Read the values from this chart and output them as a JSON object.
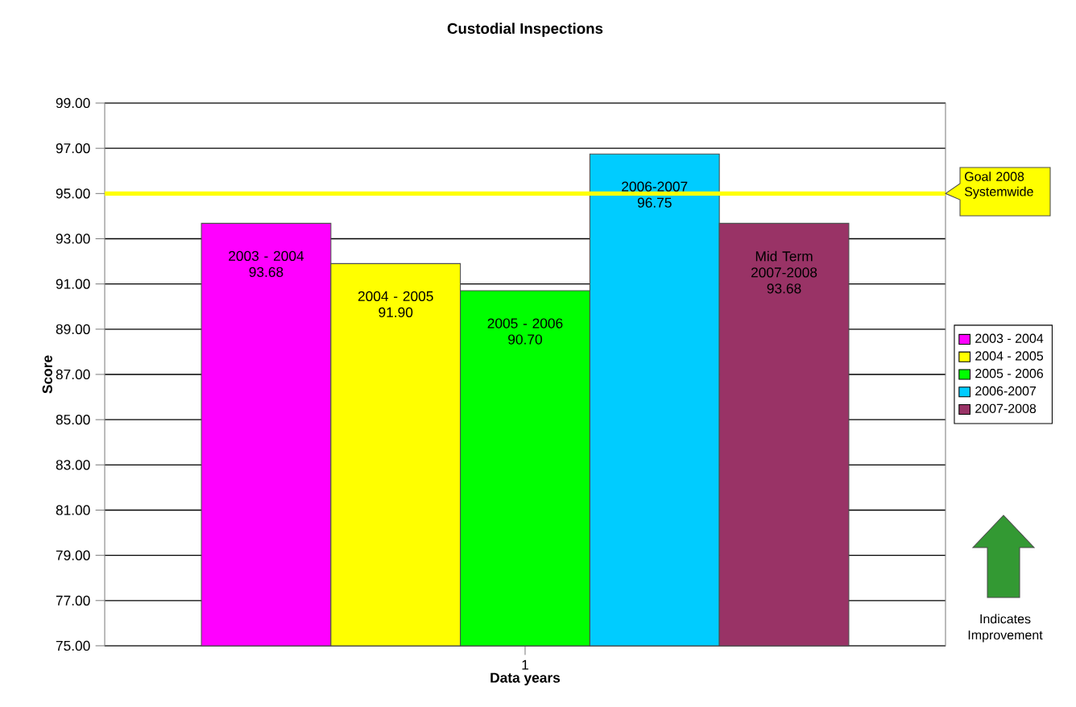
{
  "chart_data": {
    "type": "bar",
    "title": "Custodial Inspections",
    "xlabel": "Data years",
    "ylabel": "Score",
    "categories": [
      "1"
    ],
    "series": [
      {
        "name": "2003 - 2004",
        "color": "#ff00ff",
        "values": [
          93.68
        ],
        "value_labels": [
          "2003 - 2004 93.68"
        ]
      },
      {
        "name": "2004 - 2005",
        "color": "#ffff00",
        "values": [
          91.9
        ],
        "value_labels": [
          "2004 - 2005 91.90"
        ]
      },
      {
        "name": "2005 - 2006",
        "color": "#00ff00",
        "values": [
          90.7
        ],
        "value_labels": [
          "2005 - 2006 90.70"
        ]
      },
      {
        "name": "2006-2007",
        "color": "#00ccff",
        "values": [
          96.75
        ],
        "value_labels": [
          "2006-2007 96.75"
        ]
      },
      {
        "name": "2007-2008",
        "color": "#993366",
        "values": [
          93.68
        ],
        "value_labels": [
          "Mid Term 2007-2008 93.68"
        ]
      }
    ],
    "ylim": [
      75,
      99
    ],
    "yticks": [
      {
        "value": 75,
        "label": "75.00"
      },
      {
        "value": 77,
        "label": "77.00"
      },
      {
        "value": 79,
        "label": "79.00"
      },
      {
        "value": 81,
        "label": "81.00"
      },
      {
        "value": 83,
        "label": "83.00"
      },
      {
        "value": 85,
        "label": "85.00"
      },
      {
        "value": 87,
        "label": "87.00"
      },
      {
        "value": 89,
        "label": "89.00"
      },
      {
        "value": 91,
        "label": "91.00"
      },
      {
        "value": 93,
        "label": "93.00"
      },
      {
        "value": 95,
        "label": "95.00"
      },
      {
        "value": 97,
        "label": "97.00"
      },
      {
        "value": 99,
        "label": "99.00"
      }
    ],
    "ref_lines": [
      {
        "axis": "y",
        "value": 95,
        "label": "Goal 2008 Systemwide",
        "color": "#ffff00"
      }
    ],
    "annotations": [
      "Indicates Improvement"
    ],
    "grid": "y",
    "legend": "right"
  }
}
